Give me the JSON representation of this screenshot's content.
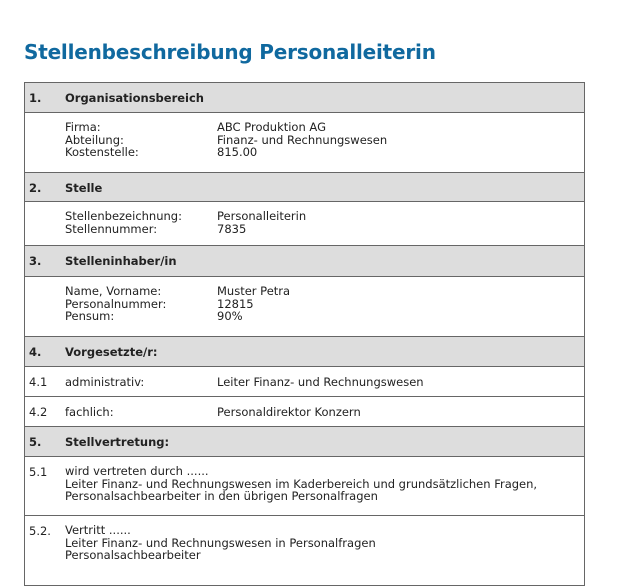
{
  "title": "Stellenbeschreibung Personalleiterin",
  "sections": [
    {
      "num": "1.",
      "title": "Organisationsbereich",
      "fields": [
        {
          "label": "Firma:",
          "value": "ABC Produktion AG"
        },
        {
          "label": "Abteilung:",
          "value": "Finanz- und Rechnungswesen"
        },
        {
          "label": "Kostenstelle:",
          "value": "815.00"
        }
      ]
    },
    {
      "num": "2.",
      "title": "Stelle",
      "fields": [
        {
          "label": "Stellenbezeichnung:",
          "value": "Personalleiterin"
        },
        {
          "label": "Stellennummer:",
          "value": "7835"
        }
      ]
    },
    {
      "num": "3.",
      "title": "Stelleninhaber/in",
      "fields": [
        {
          "label": "Name, Vorname:",
          "value": "Muster Petra"
        },
        {
          "label": "Personalnummer:",
          "value": "12815"
        },
        {
          "label": "Pensum:",
          "value": "90%"
        }
      ]
    },
    {
      "num": "4.",
      "title": "Vorgesetzte/r:",
      "items": [
        {
          "num": "4.1",
          "label": "administrativ:",
          "value": "Leiter Finanz- und Rechnungswesen"
        },
        {
          "num": "4.2",
          "label": "fachlich:",
          "value": "Personaldirektor Konzern"
        }
      ]
    },
    {
      "num": "5.",
      "title": "Stellvertretung:",
      "items": [
        {
          "num": "5.1",
          "lines": [
            "wird vertreten durch ......",
            "Leiter Finanz- und Rechnungswesen im Kaderbereich und grundsätzlichen Fragen,",
            "Personalsachbearbeiter in den übrigen Personalfragen"
          ]
        },
        {
          "num": "5.2.",
          "lines": [
            "Vertritt ......",
            "Leiter Finanz- und Rechnungswesen in Personalfragen",
            "Personalsachbearbeiter"
          ]
        }
      ]
    }
  ]
}
